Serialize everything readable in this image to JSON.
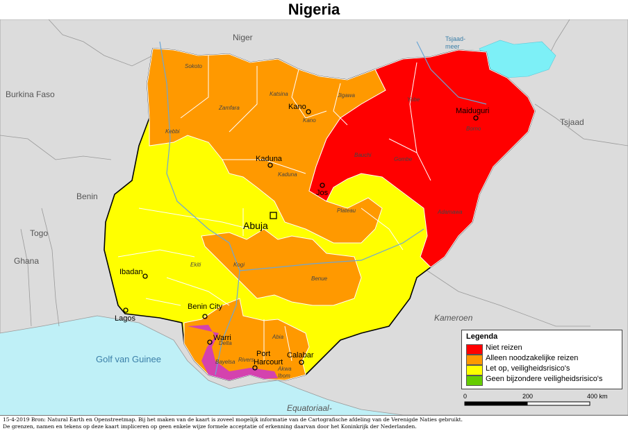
{
  "title": "Nigeria",
  "colors": {
    "sea": "#bff0f7",
    "land": "#dcdcdc",
    "lake": "#7df0f7",
    "river": "#6ba6d6",
    "niet_reizen": "#ff0000",
    "noodzakelijk": "#ff9900",
    "let_op": "#ffff00",
    "geen_risico": "#66cc00",
    "delta_hatch": "#cc33cc"
  },
  "neighbours": {
    "niger": "Niger",
    "burkina": "Burkina Faso",
    "benin": "Benin",
    "togo": "Togo",
    "ghana": "Ghana",
    "tsjaad": "Tsjaad",
    "tsjaadmeer": "Tsjaad-\nmeer",
    "kameroen": "Kameroen",
    "golf": "Golf van Guinee",
    "equatoriaal": "Equatoriaal-"
  },
  "states": {
    "sokoto": "Sokoto",
    "katsina": "Katsina",
    "jigawa": "Jigawa",
    "yobe": "Yobe",
    "zamfara": "Zamfara",
    "kebbi": "Kebbi",
    "kano": "Kano",
    "borno": "Borno",
    "kaduna": "Kaduna",
    "bauchi": "Bauchi",
    "gombe": "Gombe",
    "plateau": "Plateau",
    "adamawa": "Adamawa",
    "ekiti": "Ekiti",
    "kogi": "Kogi",
    "benue": "Benue",
    "delta": "Delta",
    "abia": "Abia",
    "bayelsa": "Bayelsa",
    "rivers": "Rivers",
    "akwa_ibom": "Akwa\nIbom"
  },
  "cities": {
    "kano": "Kano",
    "maiduguri": "Maiduguri",
    "kaduna": "Kaduna",
    "jos": "Jos",
    "abuja": "Abuja",
    "ibadan": "Ibadan",
    "benin_city": "Benin City",
    "lagos": "Lagos",
    "warri": "Warri",
    "port_harcourt": "Port\nHarcourt",
    "calabar": "Calabar"
  },
  "legend": {
    "title": "Legenda",
    "items": [
      {
        "label": "Niet reizen",
        "color": "#ff0000"
      },
      {
        "label": "Alleen noodzakelijke reizen",
        "color": "#ff9900"
      },
      {
        "label": "Let op, veiligheidsrisico's",
        "color": "#ffff00"
      },
      {
        "label": "Geen bijzondere veiligheidsrisico's",
        "color": "#66cc00"
      }
    ]
  },
  "scale": {
    "labels": [
      "0",
      "200",
      "400 km"
    ]
  },
  "footer": {
    "line1": "15-4-2019 Bron: Natural Earth en Openstreetmap. Bij het maken van de kaart is zoveel mogelijk informatie van de Cartografische afdeling van de Verenigde Naties gebruikt.",
    "line2": "De grenzen, namen en tekens op deze kaart impliceren op geen enkele wijze formele acceptatie of erkenning daarvan door het Koninkrijk der Nederlanden."
  }
}
